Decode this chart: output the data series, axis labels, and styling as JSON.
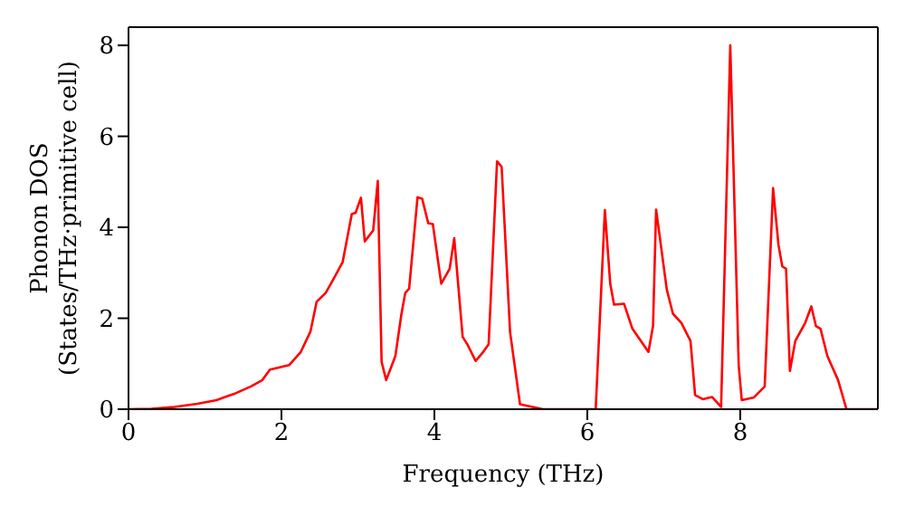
{
  "chart_data": {
    "type": "line",
    "xlabel": "Frequency (THz)",
    "ylabel": "Phonon DOS\n(States/THz·primitive cell)",
    "xlim": [
      0,
      9.8
    ],
    "xticks": [
      0,
      2,
      4,
      6,
      8
    ],
    "ylim": [
      0,
      8.4
    ],
    "yticks": [
      0,
      2,
      4,
      6,
      8
    ],
    "marker": "none",
    "line_style": "solid",
    "series": [
      {
        "color": "#ff0000",
        "x": [
          0,
          0.3,
          0.6,
          0.9,
          1.15,
          1.4,
          1.6,
          1.75,
          1.85,
          2.1,
          2.25,
          2.38,
          2.46,
          2.58,
          2.67,
          2.8,
          2.92,
          2.97,
          3.04,
          3.09,
          3.2,
          3.26,
          3.31,
          3.37,
          3.49,
          3.57,
          3.62,
          3.67,
          3.78,
          3.84,
          3.92,
          3.98,
          4.09,
          4.2,
          4.26,
          4.37,
          4.43,
          4.54,
          4.63,
          4.71,
          4.82,
          4.88,
          4.99,
          5.12,
          5.42,
          6.11,
          6.23,
          6.3,
          6.35,
          6.48,
          6.59,
          6.8,
          6.86,
          6.9,
          7.04,
          7.12,
          7.23,
          7.35,
          7.41,
          7.51,
          7.63,
          7.75,
          7.87,
          7.98,
          8.02,
          8.18,
          8.32,
          8.43,
          8.5,
          8.55,
          8.6,
          8.65,
          8.72,
          8.85,
          8.93,
          8.99,
          9.05,
          9.14,
          9.28,
          9.39,
          9.8
        ],
        "values": [
          0,
          0.01,
          0.05,
          0.12,
          0.2,
          0.35,
          0.5,
          0.64,
          0.87,
          0.97,
          1.25,
          1.71,
          2.36,
          2.56,
          2.83,
          3.23,
          4.29,
          4.32,
          4.65,
          3.69,
          3.93,
          5.02,
          1.04,
          0.64,
          1.17,
          2.1,
          2.56,
          2.65,
          4.66,
          4.63,
          4.09,
          4.07,
          2.76,
          3.09,
          3.76,
          1.59,
          1.43,
          1.06,
          1.24,
          1.43,
          5.45,
          5.33,
          1.7,
          0.11,
          0,
          0,
          4.38,
          2.76,
          2.3,
          2.32,
          1.77,
          1.26,
          1.83,
          4.39,
          2.63,
          2.1,
          1.9,
          1.5,
          0.31,
          0.22,
          0.27,
          0.05,
          8.0,
          0.97,
          0.2,
          0.26,
          0.5,
          4.86,
          3.62,
          3.14,
          3.09,
          0.84,
          1.5,
          1.9,
          2.26,
          1.83,
          1.77,
          1.17,
          0.64,
          0,
          0
        ]
      }
    ]
  }
}
